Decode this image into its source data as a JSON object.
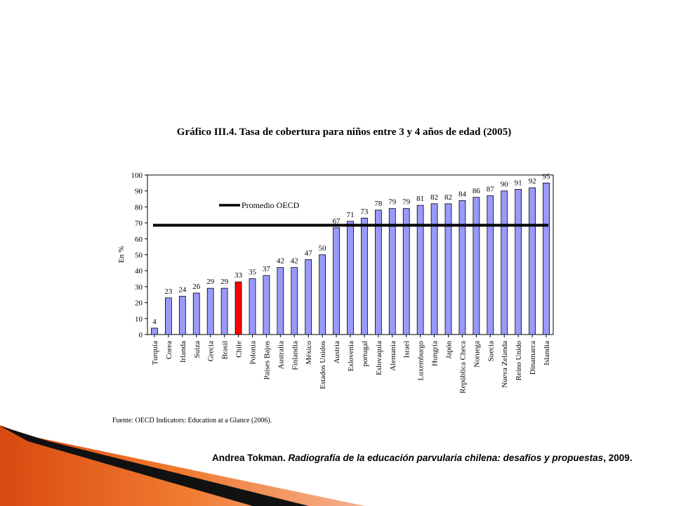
{
  "chart_data": {
    "type": "bar",
    "title": "Gráfico III.4. Tasa de cobertura para niños entre 3 y 4 años de edad (2005)",
    "xlabel": "",
    "ylabel": "En %",
    "ylim": [
      0,
      100
    ],
    "yticks": [
      0,
      10,
      20,
      30,
      40,
      50,
      60,
      70,
      80,
      90,
      100
    ],
    "categories": [
      "Turquía",
      "Corea",
      "Irlanda",
      "Suiza",
      "Grecia",
      "Brasil",
      "Chile",
      "Polonia",
      "Países Bajos",
      "Australia",
      "Finlandia",
      "México",
      "Estados Unidos",
      "Austria",
      "Eslovenia",
      "portugal",
      "Eslovaquia",
      "Alemania",
      "Israel",
      "Luxemburgo",
      "Hungría",
      "Japón",
      "República Checa",
      "Noruega",
      "Suecia",
      "Nueva Zelanda",
      "Reino Unido",
      "Dinamarca",
      "Islandia"
    ],
    "values": [
      4,
      23,
      24,
      26,
      29,
      29,
      33,
      35,
      37,
      42,
      42,
      47,
      50,
      67,
      71,
      73,
      78,
      79,
      79,
      81,
      82,
      82,
      84,
      86,
      87,
      90,
      91,
      92,
      95
    ],
    "highlight": "Chile",
    "bar_color": "#9999ff",
    "highlight_color": "#ff0000",
    "reference_line": {
      "label": "Promedio OECD",
      "value": 68.5,
      "color": "#000000"
    },
    "grid": false
  },
  "source_text": "Fuente: OECD Indicators: Education at a Glance (2006).",
  "citation": {
    "author": "Andrea Tokman.",
    "title": "Radiografía de la educación parvularia chilena: desafíos y propuestas",
    "rest": ", 2009."
  }
}
